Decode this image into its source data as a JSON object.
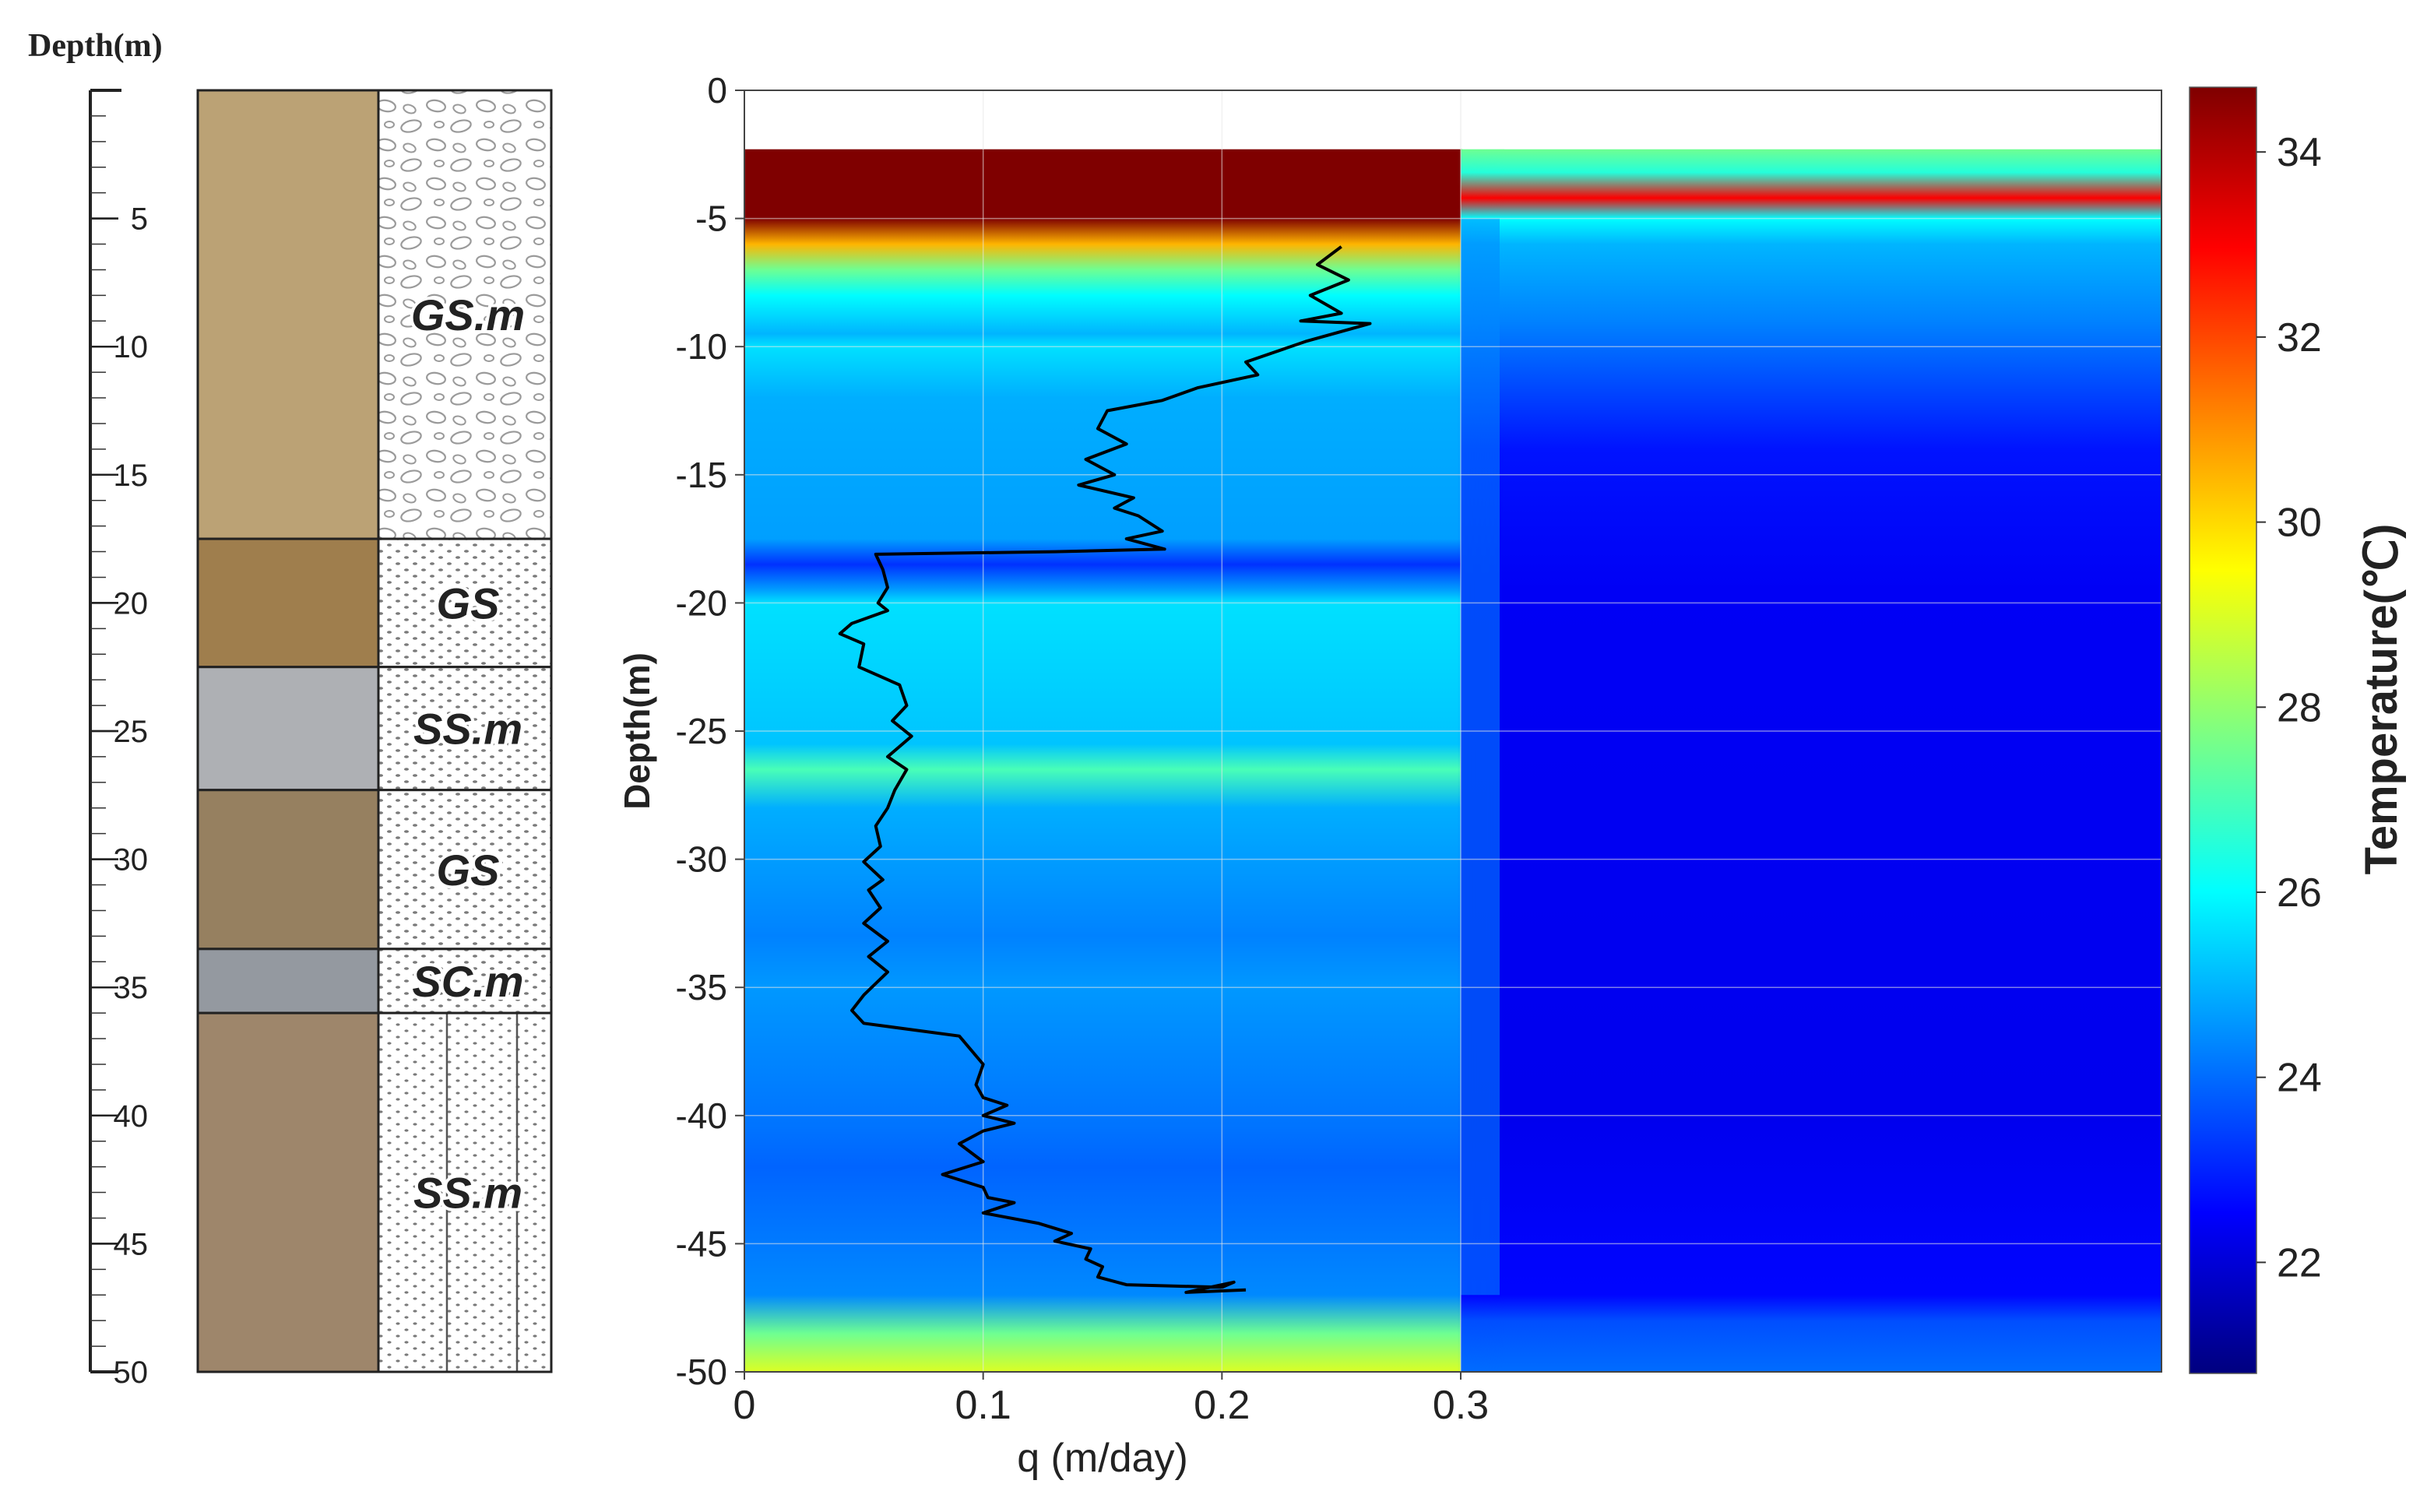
{
  "log_panel": {
    "depth_label": "Depth(m)",
    "depth_ticks": [
      5,
      10,
      15,
      20,
      25,
      30,
      35,
      40,
      45,
      50
    ],
    "units": [
      {
        "label": "GS.m",
        "top": 0,
        "bottom": 17.5,
        "photo_color": "#c7ad7d",
        "pattern": "ovals"
      },
      {
        "label": "GS",
        "top": 17.5,
        "bottom": 22.5,
        "photo_color": "#a98652",
        "pattern": "dots"
      },
      {
        "label": "SS.m",
        "top": 22.5,
        "bottom": 27.3,
        "photo_color": "#b9bcc0",
        "pattern": "dots"
      },
      {
        "label": "GS",
        "top": 27.3,
        "bottom": 33.5,
        "photo_color": "#a08967",
        "pattern": "dots"
      },
      {
        "label": "SC.m",
        "top": 33.5,
        "bottom": 36.0,
        "photo_color": "#9ea3ab",
        "pattern": "dots"
      },
      {
        "label": "SS.m",
        "top": 36.0,
        "bottom": 50,
        "photo_color": "#a88f72",
        "pattern": "dots_lines"
      }
    ]
  },
  "chart_data": {
    "type": "heatmap",
    "xlabel": "q (m/day)",
    "ylabel": "Depth(m)",
    "xlim": [
      0,
      0.3
    ],
    "ylim": [
      -50,
      0
    ],
    "x_ticks": [
      "0",
      "0.1",
      "0.2",
      "0.3"
    ],
    "y_ticks": [
      0,
      -5,
      -10,
      -15,
      -20,
      -25,
      -30,
      -35,
      -40,
      -45,
      -50
    ],
    "grid": true,
    "colorbar": {
      "label": "Temperature(℃)",
      "range": [
        20.8,
        34.7
      ],
      "ticks": [
        22,
        24,
        26,
        28,
        30,
        32,
        34
      ],
      "colormap": [
        "#00007f",
        "#0000ff",
        "#0080ff",
        "#00ffff",
        "#80ff80",
        "#ffff00",
        "#ff8000",
        "#ff0000",
        "#7f0000"
      ]
    },
    "temperature_field": {
      "data_top_depth": -2.3,
      "left_segment": {
        "description_depths": [
          -2.3,
          -5,
          -6,
          -7,
          -8,
          -9.5,
          -10,
          -12,
          -17.5,
          -18.5,
          -19.5,
          -20,
          -25.5,
          -26.5,
          -28,
          -33,
          -35,
          -40.5,
          -42,
          -47,
          -48.5,
          -50
        ],
        "temperatures": [
          34.7,
          34.7,
          30.5,
          27.5,
          26.0,
          25.0,
          25.6,
          24.9,
          24.7,
          23.2,
          24.7,
          25.6,
          25.2,
          27.0,
          24.9,
          24.3,
          24.6,
          24.1,
          23.9,
          24.4,
          27.5,
          29.0
        ]
      },
      "right_segment": {
        "description_depths": [
          -2.3,
          -3.2,
          -4.2,
          -5.0,
          -6,
          -9,
          -14,
          -19.5,
          -40,
          -47,
          -48,
          -50
        ],
        "temperatures": [
          27.5,
          26.5,
          33.0,
          26.0,
          25.0,
          24.3,
          22.8,
          22.4,
          22.3,
          22.6,
          23.6,
          24.0
        ]
      }
    },
    "series": [
      {
        "x": [
          0.25,
          0.24,
          0.253,
          0.237,
          0.25,
          0.233,
          0.262,
          0.235,
          0.21,
          0.215,
          0.19,
          0.175,
          0.152,
          0.148,
          0.16,
          0.143,
          0.155,
          0.14,
          0.163,
          0.155,
          0.165,
          0.175,
          0.16,
          0.176,
          0.13,
          0.055,
          0.058,
          0.06,
          0.056,
          0.06,
          0.045,
          0.04,
          0.05,
          0.048,
          0.065,
          0.068,
          0.062,
          0.07,
          0.06,
          0.068,
          0.063,
          0.06,
          0.055,
          0.057,
          0.05,
          0.058,
          0.052,
          0.057,
          0.05,
          0.06,
          0.052,
          0.06,
          0.05,
          0.045,
          0.05,
          0.09,
          0.1,
          0.097,
          0.1,
          0.11,
          0.1,
          0.113,
          0.1,
          0.09,
          0.1,
          0.083,
          0.1,
          0.102,
          0.113,
          0.1,
          0.123,
          0.137,
          0.13,
          0.145,
          0.143,
          0.15,
          0.148,
          0.16,
          0.2,
          0.205,
          0.185,
          0.21
        ],
        "y": [
          -6.1,
          -6.8,
          -7.4,
          -8.0,
          -8.7,
          -9.0,
          -9.1,
          -9.8,
          -10.6,
          -11.1,
          -11.6,
          -12.1,
          -12.5,
          -13.2,
          -13.8,
          -14.4,
          -15.0,
          -15.4,
          -15.9,
          -16.3,
          -16.6,
          -17.2,
          -17.5,
          -17.9,
          -18.0,
          -18.1,
          -18.7,
          -19.4,
          -20.0,
          -20.3,
          -20.8,
          -21.2,
          -21.6,
          -22.5,
          -23.2,
          -24.0,
          -24.6,
          -25.2,
          -26.0,
          -26.5,
          -27.3,
          -28.0,
          -28.7,
          -29.5,
          -30.1,
          -30.8,
          -31.2,
          -31.9,
          -32.5,
          -33.2,
          -33.8,
          -34.4,
          -35.3,
          -35.9,
          -36.4,
          -36.9,
          -38.0,
          -38.8,
          -39.3,
          -39.6,
          -40.0,
          -40.3,
          -40.6,
          -41.1,
          -41.8,
          -42.3,
          -42.8,
          -43.2,
          -43.4,
          -43.8,
          -44.2,
          -44.6,
          -44.9,
          -45.2,
          -45.6,
          -45.9,
          -46.3,
          -46.6,
          -46.7,
          -46.5,
          -46.9,
          -46.8
        ]
      }
    ]
  }
}
